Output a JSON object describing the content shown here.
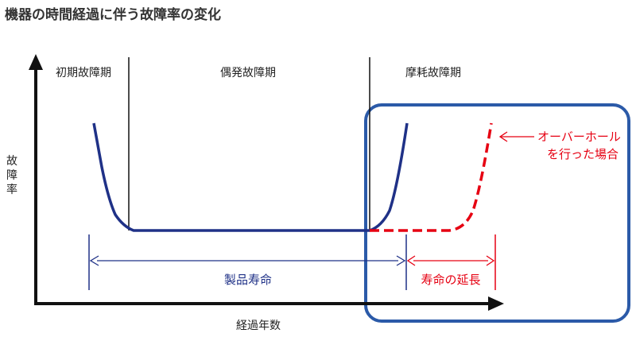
{
  "title": "機器の時間経過に伴う故障率の変化",
  "phases": {
    "initial": "初期故障期",
    "random": "偶発故障期",
    "wearout": "摩耗故障期"
  },
  "axes": {
    "y_label_chars": [
      "故",
      "障",
      "率"
    ],
    "x_label": "経過年数"
  },
  "spans": {
    "product_life": "製品寿命",
    "life_extension": "寿命の延長"
  },
  "annotation": {
    "line1": "オーバーホール",
    "line2": "を行った場合"
  },
  "colors": {
    "navy": "#1f3187",
    "red": "#e60012",
    "blue_box": "#2b5aa8",
    "black": "#111111"
  }
}
